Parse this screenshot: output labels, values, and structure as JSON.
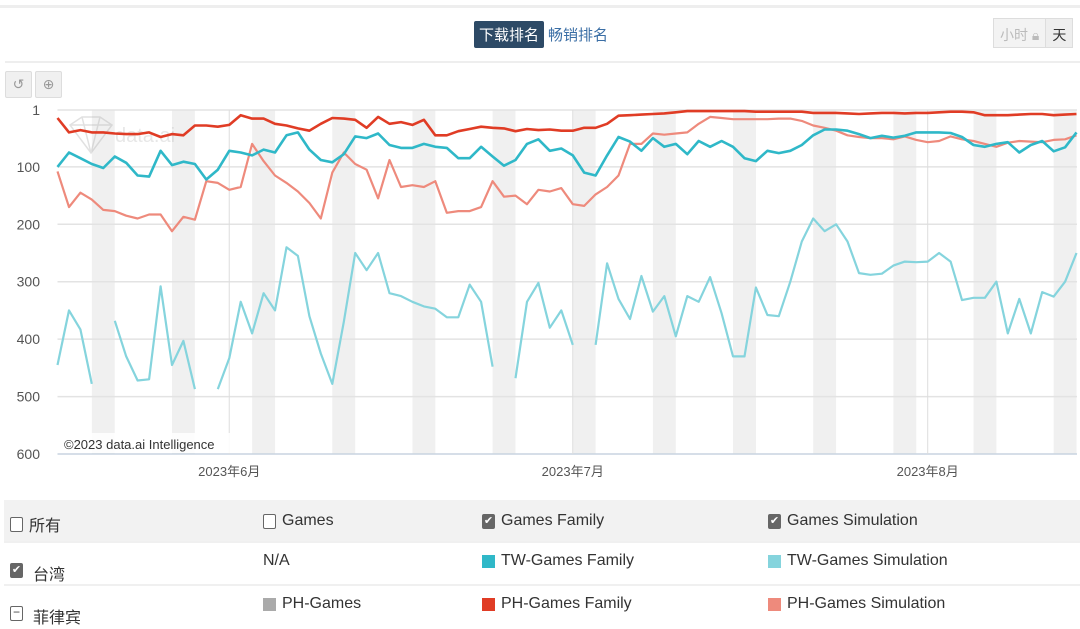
{
  "header": {
    "tabs": [
      {
        "label": "下载排名",
        "active": true
      },
      {
        "label": "畅销排名",
        "active": false
      }
    ],
    "granularity": {
      "hour": "小时",
      "day": "天",
      "hour_locked": true
    }
  },
  "toolbar": {
    "reset": "reset-zoom",
    "zoom": "zoom-in"
  },
  "chart_data": {
    "type": "line",
    "watermark": "data.ai",
    "credit": "©2023 data.ai Intelligence",
    "y_inverted": true,
    "ylim": [
      1,
      600
    ],
    "yticks": [
      1,
      100,
      200,
      300,
      400,
      500,
      600
    ],
    "x_start": "2023-05-17",
    "x_days": 90,
    "xticks": [
      {
        "day": 15,
        "label": "2023年6月"
      },
      {
        "day": 45,
        "label": "2023年7月"
      },
      {
        "day": 76,
        "label": "2023年8月"
      }
    ],
    "weekend_start_day": 3,
    "series": [
      {
        "name": "PH-Games Family",
        "color": "#e03c25",
        "values": [
          15,
          40,
          36,
          40,
          40,
          42,
          43,
          43,
          40,
          48,
          43,
          45,
          28,
          28,
          30,
          27,
          10,
          16,
          16,
          25,
          28,
          33,
          37,
          25,
          15,
          16,
          18,
          32,
          13,
          25,
          22,
          27,
          18,
          45,
          45,
          38,
          34,
          30,
          32,
          33,
          38,
          34,
          36,
          35,
          37,
          37,
          32,
          32,
          25,
          11,
          10,
          9,
          8,
          7,
          5,
          3,
          3,
          3,
          3,
          3,
          3,
          4,
          4,
          4,
          4,
          4,
          6,
          6,
          6,
          7,
          8,
          7,
          6,
          6,
          7,
          6,
          6,
          5,
          4,
          4,
          5,
          10,
          10,
          10,
          9,
          8,
          8,
          10,
          9,
          8
        ]
      },
      {
        "name": "TW-Games Family",
        "color": "#2fb8c8",
        "values": [
          100,
          75,
          85,
          95,
          102,
          82,
          93,
          115,
          117,
          72,
          97,
          91,
          95,
          122,
          105,
          72,
          75,
          80,
          70,
          75,
          45,
          40,
          70,
          88,
          92,
          78,
          47,
          50,
          42,
          62,
          67,
          67,
          60,
          65,
          67,
          85,
          85,
          65,
          82,
          98,
          88,
          60,
          52,
          72,
          68,
          80,
          110,
          115,
          80,
          48,
          56,
          72,
          50,
          65,
          60,
          78,
          55,
          65,
          55,
          65,
          85,
          90,
          72,
          76,
          72,
          62,
          45,
          35,
          35,
          37,
          43,
          50,
          46,
          49,
          46,
          40,
          40,
          40,
          41,
          48,
          62,
          65,
          60,
          57,
          75,
          62,
          55,
          73,
          66,
          40
        ]
      },
      {
        "name": "PH-Games Simulation",
        "color": "#ee8a7c",
        "values": [
          108,
          170,
          145,
          157,
          175,
          177,
          185,
          190,
          183,
          183,
          212,
          187,
          192,
          125,
          128,
          140,
          135,
          60,
          90,
          115,
          128,
          143,
          163,
          190,
          110,
          75,
          95,
          105,
          155,
          88,
          135,
          132,
          135,
          125,
          180,
          177,
          177,
          170,
          125,
          152,
          150,
          165,
          140,
          143,
          137,
          165,
          168,
          148,
          135,
          115,
          60,
          60,
          42,
          44,
          42,
          40,
          25,
          13,
          15,
          17,
          17,
          17,
          17,
          16,
          16,
          20,
          28,
          32,
          37,
          45,
          48,
          50,
          50,
          52,
          47,
          53,
          57,
          55,
          47,
          52,
          55,
          60,
          65,
          58,
          55,
          56,
          57,
          53,
          52,
          45
        ]
      },
      {
        "name": "TW-Games Simulation",
        "color": "#85d4dd",
        "values": [
          445,
          350,
          383,
          478,
          null,
          368,
          430,
          472,
          470,
          308,
          445,
          403,
          487,
          null,
          487,
          433,
          335,
          390,
          320,
          350,
          240,
          255,
          360,
          425,
          478,
          370,
          250,
          280,
          250,
          320,
          325,
          335,
          343,
          347,
          362,
          362,
          305,
          335,
          448,
          null,
          468,
          335,
          302,
          380,
          350,
          410,
          null,
          410,
          268,
          330,
          365,
          290,
          352,
          325,
          395,
          325,
          335,
          292,
          355,
          430,
          430,
          310,
          358,
          360,
          300,
          230,
          190,
          212,
          200,
          230,
          285,
          288,
          286,
          272,
          265,
          266,
          265,
          250,
          265,
          332,
          328,
          328,
          300,
          390,
          330,
          390,
          318,
          326,
          300,
          250
        ]
      }
    ]
  },
  "legend": {
    "header": [
      "所有",
      "Games",
      "Games Family",
      "Games Simulation"
    ],
    "header_checked": [
      false,
      false,
      true,
      true
    ],
    "rows": [
      {
        "country": "台湾",
        "state": "checked",
        "cells": [
          {
            "label": "N/A",
            "color": null
          },
          {
            "label": "TW-Games Family",
            "color": "#2fb8c8"
          },
          {
            "label": "TW-Games Simulation",
            "color": "#85d4dd"
          }
        ]
      },
      {
        "country": "菲律宾",
        "state": "partial",
        "cells": [
          {
            "label": "PH-Games",
            "color": "#aaaaaa"
          },
          {
            "label": "PH-Games Family",
            "color": "#e03c25"
          },
          {
            "label": "PH-Games Simulation",
            "color": "#ee8a7c"
          }
        ]
      }
    ]
  }
}
